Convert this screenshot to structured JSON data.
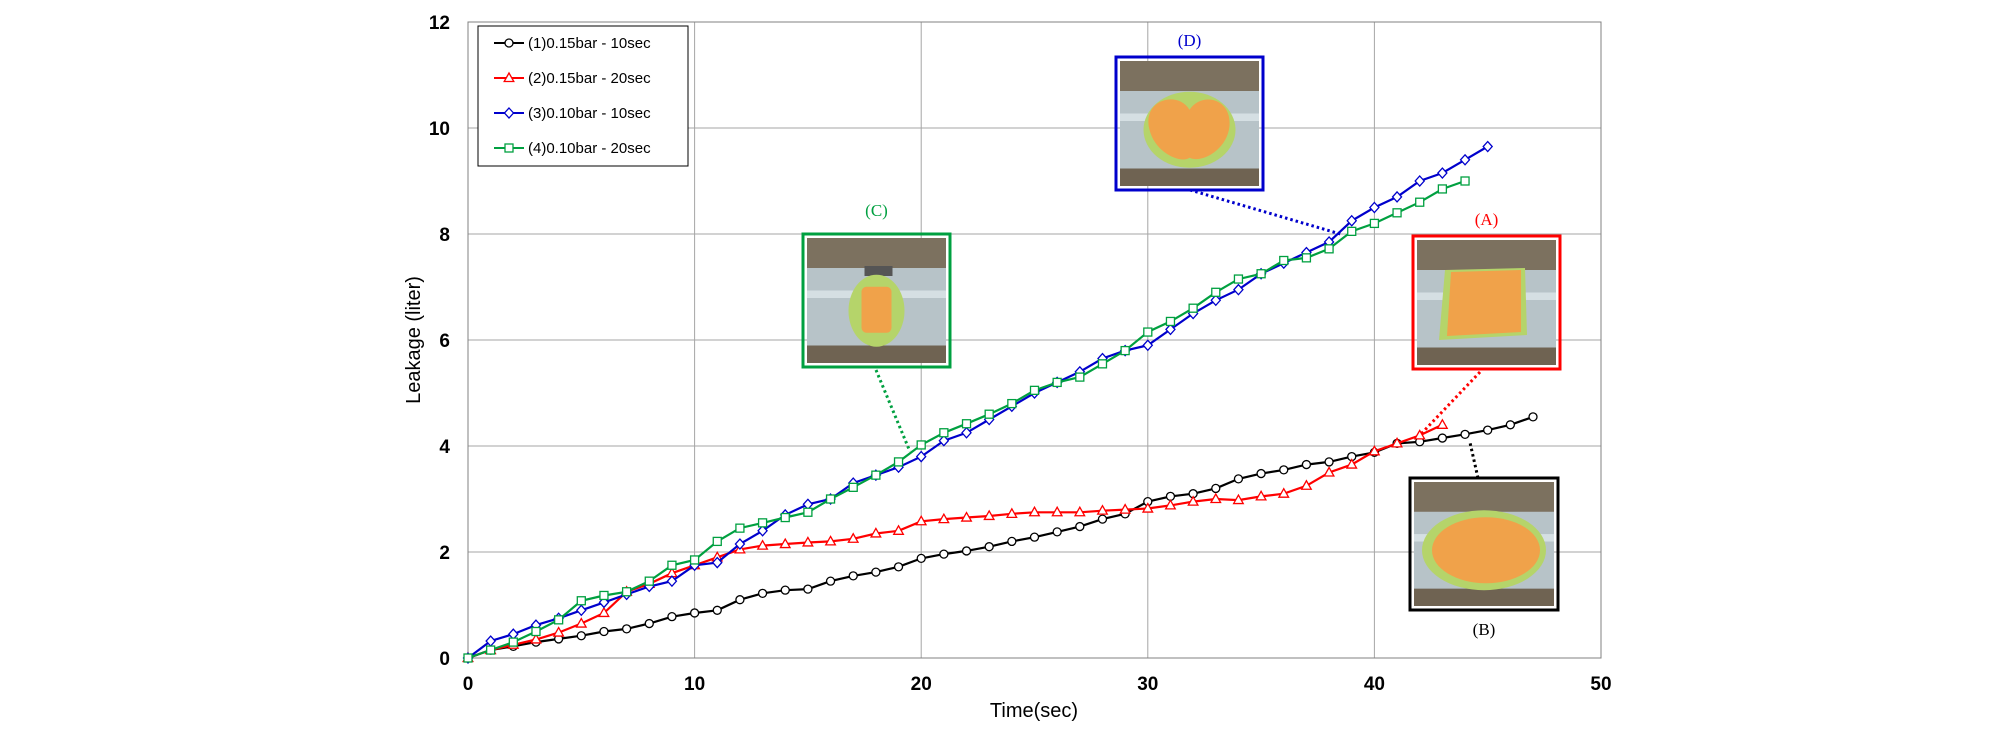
{
  "chart_data": {
    "type": "line",
    "xlabel": "Time(sec)",
    "ylabel": "Leakage (liter)",
    "xlim": [
      0,
      50
    ],
    "ylim": [
      0,
      12
    ],
    "xticks": [
      "0",
      "10",
      "20",
      "30",
      "40",
      "50"
    ],
    "yticks": [
      "0",
      "2",
      "4",
      "6",
      "8",
      "10",
      "12"
    ],
    "grid": true,
    "legend_position": "top-left",
    "series": [
      {
        "name": "(1)0.15bar - 10sec",
        "color": "#000000",
        "marker": "circle",
        "x": [
          0,
          1,
          2,
          3,
          4,
          5,
          6,
          7,
          8,
          9,
          10,
          11,
          12,
          13,
          14,
          15,
          16,
          17,
          18,
          19,
          20,
          21,
          22,
          23,
          24,
          25,
          26,
          27,
          28,
          29,
          30,
          31,
          32,
          33,
          34,
          35,
          36,
          37,
          38,
          39,
          40,
          41,
          42,
          43,
          44,
          45,
          46,
          47
        ],
        "y": [
          0,
          0.15,
          0.22,
          0.3,
          0.36,
          0.42,
          0.5,
          0.55,
          0.65,
          0.78,
          0.85,
          0.9,
          1.1,
          1.22,
          1.28,
          1.3,
          1.45,
          1.55,
          1.62,
          1.72,
          1.88,
          1.96,
          2.02,
          2.1,
          2.2,
          2.28,
          2.38,
          2.48,
          2.62,
          2.72,
          2.95,
          3.05,
          3.1,
          3.2,
          3.38,
          3.48,
          3.55,
          3.65,
          3.7,
          3.8,
          3.88,
          4.05,
          4.08,
          4.15,
          4.22,
          4.3,
          4.4,
          4.55
        ]
      },
      {
        "name": "(2)0.15bar - 20sec",
        "color": "#ff0000",
        "marker": "triangle",
        "x": [
          0,
          1,
          2,
          3,
          4,
          5,
          6,
          7,
          8,
          9,
          10,
          11,
          12,
          13,
          14,
          15,
          16,
          17,
          18,
          19,
          20,
          21,
          22,
          23,
          24,
          25,
          26,
          27,
          28,
          29,
          30,
          31,
          32,
          33,
          34,
          35,
          36,
          37,
          38,
          39,
          40,
          41,
          42,
          43
        ],
        "y": [
          0,
          0.15,
          0.25,
          0.35,
          0.48,
          0.65,
          0.85,
          1.25,
          1.4,
          1.6,
          1.75,
          1.9,
          2.05,
          2.12,
          2.15,
          2.18,
          2.2,
          2.25,
          2.35,
          2.4,
          2.58,
          2.62,
          2.65,
          2.68,
          2.72,
          2.75,
          2.75,
          2.75,
          2.78,
          2.8,
          2.82,
          2.88,
          2.95,
          3,
          2.98,
          3.05,
          3.1,
          3.25,
          3.5,
          3.65,
          3.9,
          4.05,
          4.2,
          4.4
        ]
      },
      {
        "name": "(3)0.10bar - 10sec",
        "color": "#0000cc",
        "marker": "diamond",
        "x": [
          0,
          1,
          2,
          3,
          4,
          5,
          6,
          7,
          8,
          9,
          10,
          11,
          12,
          13,
          14,
          15,
          16,
          17,
          18,
          19,
          20,
          21,
          22,
          23,
          24,
          25,
          26,
          27,
          28,
          29,
          30,
          31,
          32,
          33,
          34,
          35,
          36,
          37,
          38,
          39,
          40,
          41,
          42,
          43,
          44,
          45
        ],
        "y": [
          0,
          0.32,
          0.45,
          0.62,
          0.75,
          0.9,
          1.05,
          1.2,
          1.35,
          1.45,
          1.75,
          1.8,
          2.15,
          2.4,
          2.7,
          2.9,
          3,
          3.3,
          3.45,
          3.6,
          3.8,
          4.1,
          4.25,
          4.5,
          4.75,
          5,
          5.2,
          5.4,
          5.65,
          5.8,
          5.9,
          6.2,
          6.5,
          6.75,
          6.95,
          7.25,
          7.45,
          7.65,
          7.85,
          8.25,
          8.5,
          8.7,
          9,
          9.15,
          9.4,
          9.65
        ]
      },
      {
        "name": "(4)0.10bar - 20sec",
        "color": "#00a040",
        "marker": "square",
        "x": [
          0,
          1,
          2,
          3,
          4,
          5,
          6,
          7,
          8,
          9,
          10,
          11,
          12,
          13,
          14,
          15,
          16,
          17,
          18,
          19,
          20,
          21,
          22,
          23,
          24,
          25,
          26,
          27,
          28,
          29,
          30,
          31,
          32,
          33,
          34,
          35,
          36,
          37,
          38,
          39,
          40,
          41,
          42,
          43,
          44
        ],
        "y": [
          0,
          0.15,
          0.3,
          0.5,
          0.72,
          1.08,
          1.18,
          1.25,
          1.45,
          1.75,
          1.85,
          2.2,
          2.45,
          2.55,
          2.65,
          2.75,
          3,
          3.22,
          3.45,
          3.7,
          4.02,
          4.25,
          4.42,
          4.6,
          4.8,
          5.05,
          5.2,
          5.3,
          5.55,
          5.8,
          6.15,
          6.35,
          6.6,
          6.9,
          7.15,
          7.25,
          7.5,
          7.55,
          7.72,
          8.05,
          8.2,
          8.4,
          8.6,
          8.85,
          9
        ]
      }
    ],
    "annotations": [
      {
        "label": "(A)",
        "color": "#ff0000",
        "target": {
          "x": 42,
          "y": 4.2
        }
      },
      {
        "label": "(B)",
        "color": "#000000",
        "target": {
          "x": 44.2,
          "y": 4.1
        }
      },
      {
        "label": "(C)",
        "color": "#00a040",
        "target": {
          "x": 19.5,
          "y": 3.9
        }
      },
      {
        "label": "(D)",
        "color": "#0000cc",
        "target": {
          "x": 38.5,
          "y": 8.0
        }
      }
    ]
  }
}
